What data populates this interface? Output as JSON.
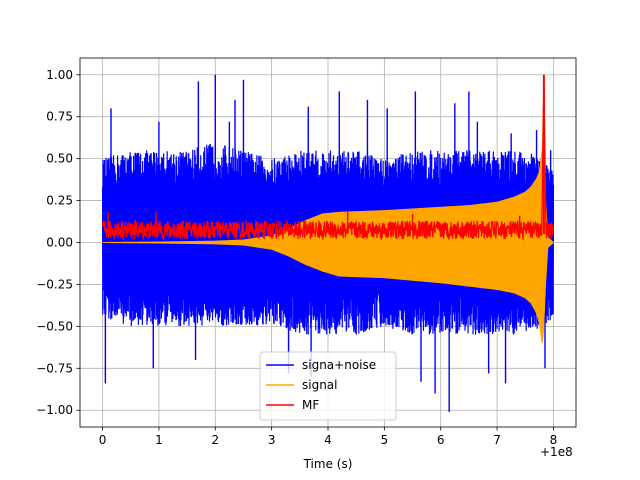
{
  "chart_data": {
    "type": "line",
    "title": "",
    "xlabel": "Time (s)",
    "ylabel": "",
    "x_offset_label": "+1e8",
    "xlim": [
      -0.4,
      8.4
    ],
    "ylim": [
      -1.1,
      1.1
    ],
    "grid": true,
    "legend_position": "lower-center",
    "xticks": [
      {
        "value": 0,
        "label": "0"
      },
      {
        "value": 1,
        "label": "1"
      },
      {
        "value": 2,
        "label": "2"
      },
      {
        "value": 3,
        "label": "3"
      },
      {
        "value": 4,
        "label": "4"
      },
      {
        "value": 5,
        "label": "5"
      },
      {
        "value": 6,
        "label": "6"
      },
      {
        "value": 7,
        "label": "7"
      },
      {
        "value": 8,
        "label": "8"
      }
    ],
    "yticks": [
      {
        "value": 1.0,
        "label": "1.00"
      },
      {
        "value": 0.75,
        "label": "0.75"
      },
      {
        "value": 0.5,
        "label": "0.50"
      },
      {
        "value": 0.25,
        "label": "0.25"
      },
      {
        "value": 0.0,
        "label": "0.00"
      },
      {
        "value": -0.25,
        "label": "−0.25"
      },
      {
        "value": -0.5,
        "label": "−0.50"
      },
      {
        "value": -0.75,
        "label": "−0.75"
      },
      {
        "value": -1.0,
        "label": "−1.00"
      }
    ],
    "series": [
      {
        "name": "signa+noise",
        "color": "#0000ff",
        "style": "dense-noise",
        "envelope_x": [
          0,
          0.5,
          1,
          1.5,
          2,
          2.5,
          3,
          3.5,
          4,
          4.5,
          5,
          5.5,
          6,
          6.5,
          7,
          7.5,
          7.8,
          8.0
        ],
        "envelope_upper": [
          0.5,
          0.55,
          0.55,
          0.55,
          0.6,
          0.55,
          0.5,
          0.55,
          0.55,
          0.55,
          0.5,
          0.55,
          0.55,
          0.55,
          0.55,
          0.55,
          0.5,
          0.45
        ],
        "envelope_lower": [
          -0.45,
          -0.5,
          -0.5,
          -0.5,
          -0.5,
          -0.5,
          -0.5,
          -0.55,
          -0.55,
          -0.55,
          -0.5,
          -0.55,
          -0.55,
          -0.55,
          -0.55,
          -0.55,
          -0.5,
          -0.45
        ],
        "spikes": [
          {
            "x": 0.05,
            "y": -0.84
          },
          {
            "x": 0.15,
            "y": 0.8
          },
          {
            "x": 1.0,
            "y": 0.72
          },
          {
            "x": 1.7,
            "y": 0.96
          },
          {
            "x": 2.0,
            "y": 1.0
          },
          {
            "x": 2.25,
            "y": 0.72
          },
          {
            "x": 2.35,
            "y": 0.85
          },
          {
            "x": 2.5,
            "y": 0.97
          },
          {
            "x": 3.65,
            "y": 0.81
          },
          {
            "x": 4.2,
            "y": 0.9
          },
          {
            "x": 4.7,
            "y": 0.85
          },
          {
            "x": 5.05,
            "y": 0.8
          },
          {
            "x": 5.55,
            "y": 0.9
          },
          {
            "x": 6.25,
            "y": 0.83
          },
          {
            "x": 6.5,
            "y": 0.9
          },
          {
            "x": 6.65,
            "y": 0.72
          },
          {
            "x": 7.25,
            "y": 0.65
          },
          {
            "x": 7.7,
            "y": 0.67
          },
          {
            "x": 7.95,
            "y": 0.55
          },
          {
            "x": 0.9,
            "y": -0.75
          },
          {
            "x": 1.65,
            "y": -0.7
          },
          {
            "x": 3.3,
            "y": -0.78
          },
          {
            "x": 3.7,
            "y": -0.8
          },
          {
            "x": 5.65,
            "y": -0.83
          },
          {
            "x": 5.9,
            "y": -0.9
          },
          {
            "x": 6.15,
            "y": -1.01
          },
          {
            "x": 6.85,
            "y": -0.78
          },
          {
            "x": 7.15,
            "y": -0.84
          },
          {
            "x": 7.85,
            "y": -0.75
          }
        ]
      },
      {
        "name": "signal",
        "color": "#ffa500",
        "style": "chirp-envelope",
        "envelope_x": [
          0,
          1,
          2,
          2.5,
          3,
          3.3,
          3.6,
          3.9,
          4.2,
          5,
          6,
          6.5,
          7,
          7.3,
          7.5,
          7.6,
          7.7,
          7.75,
          7.8,
          7.83,
          7.85,
          7.9,
          8.0
        ],
        "envelope_upper": [
          0.0,
          0.003,
          0.008,
          0.015,
          0.04,
          0.08,
          0.13,
          0.17,
          0.18,
          0.19,
          0.21,
          0.22,
          0.24,
          0.27,
          0.3,
          0.33,
          0.38,
          0.42,
          0.55,
          0.95,
          0.3,
          0.03,
          0.0
        ],
        "envelope_lower": [
          0.0,
          -0.003,
          -0.008,
          -0.015,
          -0.04,
          -0.08,
          -0.13,
          -0.17,
          -0.2,
          -0.21,
          -0.24,
          -0.26,
          -0.28,
          -0.3,
          -0.33,
          -0.36,
          -0.42,
          -0.48,
          -0.6,
          -0.5,
          -0.3,
          -0.03,
          0.0
        ]
      },
      {
        "name": "MF",
        "color": "#ff0000",
        "style": "noise-with-peak",
        "base_level": 0.07,
        "noise_range": [
          0.02,
          0.13
        ],
        "peak": {
          "x": 7.83,
          "y": 1.0
        },
        "spikes": [
          {
            "x": 0.1,
            "y": 0.18
          },
          {
            "x": 0.95,
            "y": 0.18
          },
          {
            "x": 4.35,
            "y": 0.19
          },
          {
            "x": 5.5,
            "y": 0.17
          },
          {
            "x": 7.4,
            "y": 0.16
          }
        ]
      }
    ]
  }
}
